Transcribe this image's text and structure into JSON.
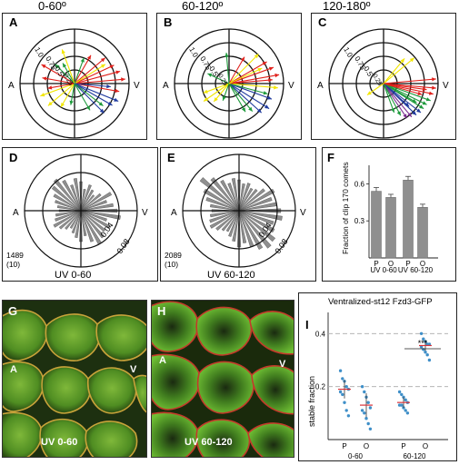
{
  "column_headers": [
    "0-60º",
    "60-120º",
    "120-180º"
  ],
  "panels": {
    "A": {
      "letter": "A",
      "left": "A",
      "right": "V",
      "rings": [
        "0.25",
        "0.5",
        "0.75",
        "1.0"
      ]
    },
    "B": {
      "letter": "B",
      "left": "A",
      "right": "V",
      "rings": [
        "0.25",
        "0.5",
        "0.75",
        "1.0"
      ]
    },
    "C": {
      "letter": "C",
      "left": "A",
      "right": "V",
      "rings": [
        "0.25",
        "0.5",
        "0.75",
        "1.0"
      ]
    },
    "D": {
      "letter": "D",
      "left": "A",
      "right": "V",
      "rings": [
        "0.04",
        "0.08"
      ],
      "count": "1489",
      "count_sub": "(10)",
      "caption": "UV 0-60"
    },
    "E": {
      "letter": "E",
      "left": "A",
      "right": "V",
      "rings": [
        "0.04",
        "0.08"
      ],
      "count": "2089",
      "count_sub": "(10)",
      "caption": "UV 60-120"
    },
    "G": {
      "letter": "G",
      "left": "A",
      "right": "V",
      "caption": "UV 0-60"
    },
    "H": {
      "letter": "H",
      "left": "A",
      "right": "V",
      "caption": "UV 60-120"
    }
  },
  "colors": {
    "red": "#e0201b",
    "yellow": "#f2e600",
    "green": "#1e9a3c",
    "blue": "#1f3a9e",
    "purple": "#7a2f8f",
    "bar_gray": "#8f8f8f",
    "dot_blue": "#3f8fc8",
    "mean_red": "#d8323a"
  },
  "chart_data": [
    {
      "panel": "F",
      "letter": "F",
      "type": "bar",
      "ylabel": "Fraction of clip 170 comets",
      "yticks": [
        "0.3",
        "0.6"
      ],
      "ylim": [
        0,
        0.75
      ],
      "categories": [
        "P",
        "O",
        "P",
        "O"
      ],
      "values": [
        0.54,
        0.49,
        0.63,
        0.41
      ],
      "errors": [
        0.03,
        0.025,
        0.03,
        0.025
      ],
      "groups": [
        "UV\n0-60",
        "UV\n60-120"
      ]
    },
    {
      "panel": "I",
      "letter": "I",
      "type": "scatter",
      "title": "Ventralized-st12 Fzd3-GFP",
      "ylabel": "stable  fraction",
      "yticks": [
        "0.2",
        "0.4"
      ],
      "ylim": [
        0,
        0.48
      ],
      "categories": [
        "P",
        "O",
        "P",
        "O"
      ],
      "groups": [
        "0-60",
        "60-120"
      ],
      "significance": "***",
      "means": [
        0.19,
        0.13,
        0.14,
        0.355
      ],
      "errors": [
        0.035,
        0.045,
        0.02,
        0.02
      ],
      "points": [
        [
          0.26,
          0.23,
          0.22,
          0.2,
          0.19,
          0.18,
          0.17,
          0.14,
          0.11,
          0.09
        ],
        [
          0.2,
          0.18,
          0.16,
          0.14,
          0.12,
          0.11,
          0.1,
          0.08,
          0.06,
          0.04
        ],
        [
          0.18,
          0.17,
          0.16,
          0.15,
          0.14,
          0.13,
          0.13,
          0.12,
          0.11,
          0.1
        ],
        [
          0.4,
          0.38,
          0.37,
          0.36,
          0.36,
          0.35,
          0.34,
          0.33,
          0.32,
          0.3
        ]
      ]
    }
  ]
}
